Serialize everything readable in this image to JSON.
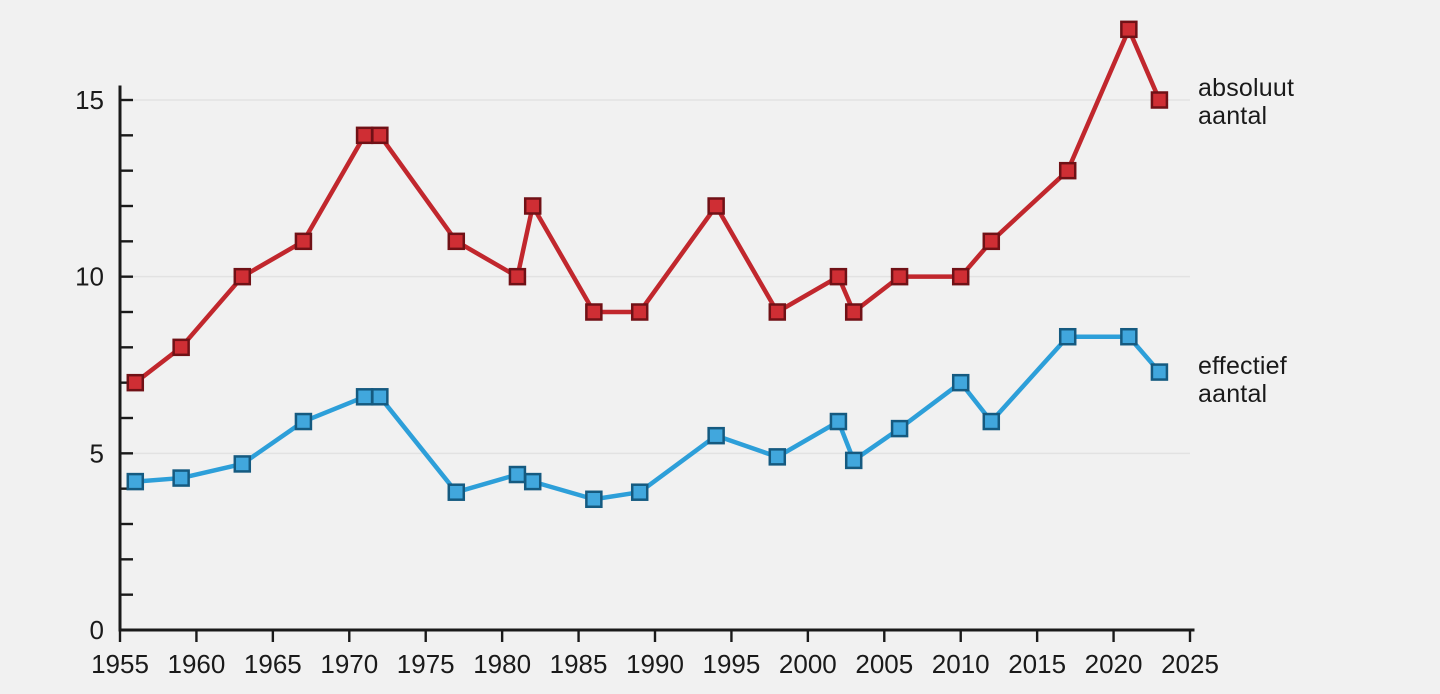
{
  "figure": {
    "background_color": "#f1f1f1",
    "axis_color": "#1a1a1a",
    "gridline_color": "#e2e2e2"
  },
  "chart_data": {
    "type": "line",
    "title": "",
    "xlabel": "",
    "ylabel": "",
    "x": [
      1956,
      1959,
      1963,
      1967,
      1971,
      1972,
      1977,
      1981,
      1982,
      1986,
      1989,
      1994,
      1998,
      2002,
      2003,
      2006,
      2010,
      2012,
      2017,
      2021,
      2023
    ],
    "series": [
      {
        "name": "absoluut aantal",
        "color": "#c1272d",
        "marker_fill": "#cf2e34",
        "marker_edge": "#701116",
        "values": [
          7,
          8,
          10,
          11,
          14,
          14,
          11,
          10,
          12,
          9,
          9,
          12,
          9,
          10,
          9,
          10,
          10,
          11,
          13,
          17,
          15
        ]
      },
      {
        "name": "effectief aantal",
        "color": "#2d9fd9",
        "marker_fill": "#41a7dd",
        "marker_edge": "#155a80",
        "values": [
          4.2,
          4.3,
          4.7,
          5.9,
          6.6,
          6.6,
          3.9,
          4.4,
          4.2,
          3.7,
          3.9,
          5.5,
          4.9,
          5.9,
          4.8,
          5.7,
          7.0,
          5.9,
          8.3,
          8.3,
          7.3
        ]
      }
    ],
    "xlim": [
      1955,
      2025
    ],
    "ylim": [
      0,
      15
    ],
    "xticks": [
      1955,
      1960,
      1965,
      1970,
      1975,
      1980,
      1985,
      1990,
      1995,
      2000,
      2005,
      2010,
      2015,
      2020,
      2025
    ],
    "yticks": [
      0,
      5,
      10,
      15
    ],
    "y_minor_step": 1,
    "gridlines": [
      5,
      10,
      15
    ],
    "grid": true,
    "legend_position": "right-inline"
  }
}
